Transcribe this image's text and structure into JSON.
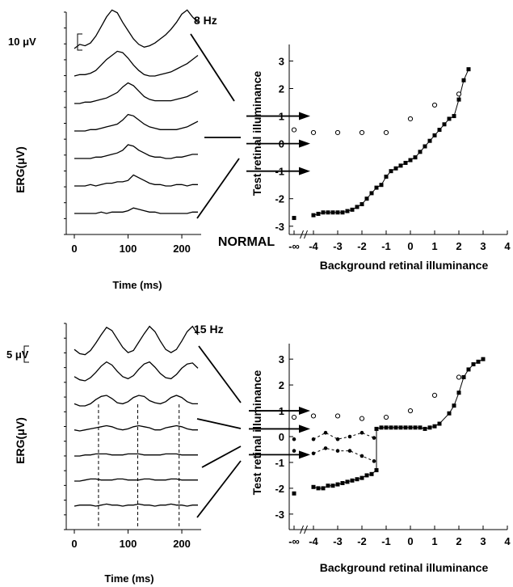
{
  "figure": {
    "condition_label": "NORMAL"
  },
  "chart_data": [
    {
      "type": "line",
      "panel": "top-left",
      "frequency_label": "8 Hz",
      "scale_label": "10 μV",
      "xlabel": "Time  (ms)",
      "ylabel": "ERG(μV)",
      "xlim": [
        0,
        230
      ],
      "x_ticks": [
        "0",
        "100",
        "200"
      ],
      "sample_x": [
        0,
        10,
        20,
        30,
        40,
        50,
        60,
        70,
        80,
        90,
        100,
        110,
        120,
        130,
        140,
        150,
        160,
        170,
        180,
        190,
        200,
        210,
        220,
        230
      ],
      "series": [
        {
          "amplitude": [
            0.0,
            0.3,
            0.2,
            0.4,
            0.9,
            1.6,
            2.3,
            2.8,
            2.6,
            1.9,
            1.3,
            0.7,
            0.3,
            0.1,
            0.2,
            0.4,
            0.7,
            1.0,
            1.4,
            1.9,
            2.5,
            2.8,
            2.3,
            1.9
          ]
        },
        {
          "amplitude": [
            0.0,
            0.1,
            0.1,
            0.2,
            0.4,
            0.8,
            1.2,
            1.5,
            1.8,
            1.7,
            1.3,
            0.8,
            0.4,
            0.1,
            0.0,
            0.0,
            0.1,
            0.2,
            0.3,
            0.5,
            0.7,
            0.9,
            1.2,
            1.5
          ]
        },
        {
          "amplitude": [
            0.0,
            0.0,
            0.1,
            0.1,
            0.2,
            0.3,
            0.4,
            0.6,
            0.8,
            1.2,
            1.5,
            1.3,
            0.9,
            0.5,
            0.3,
            0.2,
            0.2,
            0.2,
            0.2,
            0.3,
            0.4,
            0.5,
            0.7,
            0.9
          ]
        },
        {
          "amplitude": [
            0.0,
            0.0,
            0.0,
            0.1,
            0.1,
            0.2,
            0.3,
            0.4,
            0.5,
            0.8,
            1.2,
            1.1,
            0.8,
            0.5,
            0.3,
            0.2,
            0.1,
            0.1,
            0.1,
            0.1,
            0.2,
            0.3,
            0.5,
            0.7
          ]
        },
        {
          "amplitude": [
            0.0,
            0.0,
            0.0,
            0.0,
            0.1,
            0.1,
            0.2,
            0.3,
            0.4,
            0.6,
            1.0,
            0.9,
            0.6,
            0.4,
            0.2,
            0.1,
            0.1,
            0.0,
            0.0,
            0.1,
            0.1,
            0.2,
            0.3,
            0.3
          ]
        },
        {
          "amplitude": [
            0.0,
            0.0,
            0.0,
            0.1,
            0.0,
            0.1,
            0.2,
            0.2,
            0.3,
            0.3,
            0.4,
            0.8,
            0.6,
            0.4,
            0.2,
            0.1,
            0.1,
            0.0,
            0.0,
            0.1,
            0.1,
            0.0,
            0.1,
            0.1
          ]
        },
        {
          "amplitude": [
            0.0,
            0.0,
            0.0,
            0.0,
            0.0,
            0.1,
            0.0,
            0.1,
            0.1,
            0.1,
            0.2,
            0.4,
            0.3,
            0.2,
            0.1,
            0.1,
            0.0,
            0.0,
            0.0,
            0.0,
            0.0,
            0.0,
            0.1,
            0.1
          ]
        }
      ],
      "dashed_markers_ms": []
    },
    {
      "type": "scatter",
      "panel": "top-right",
      "xlabel": "Background retinal illuminance",
      "ylabel": "Test retinal illuminance",
      "xlim": [
        -5,
        4
      ],
      "ylim": [
        -3.3,
        3.6
      ],
      "x_ticks": [
        "-∞",
        "-4",
        "-3",
        "-2",
        "-1",
        "0",
        "1",
        "2",
        "3",
        "4"
      ],
      "y_ticks": [
        "-3",
        "-2",
        "-1",
        "0",
        "1",
        "2",
        "3"
      ],
      "series": [
        {
          "marker": "filled-square",
          "connected": "solid",
          "x": [
            -4,
            -3.8,
            -3.6,
            -3.4,
            -3.2,
            -3,
            -2.8,
            -2.6,
            -2.4,
            -2.2,
            -2,
            -1.8,
            -1.6,
            -1.4,
            -1.2,
            -1,
            -0.8,
            -0.6,
            -0.4,
            -0.2,
            0,
            0.2,
            0.4,
            0.6,
            0.8,
            1,
            1.2,
            1.4,
            1.6,
            1.8,
            2,
            2.2,
            2.4
          ],
          "y": [
            -2.6,
            -2.55,
            -2.5,
            -2.5,
            -2.5,
            -2.5,
            -2.5,
            -2.45,
            -2.4,
            -2.3,
            -2.2,
            -2.0,
            -1.8,
            -1.6,
            -1.5,
            -1.2,
            -1.0,
            -0.9,
            -0.8,
            -0.7,
            -0.6,
            -0.5,
            -0.3,
            -0.1,
            0.1,
            0.3,
            0.5,
            0.7,
            0.9,
            1.0,
            1.6,
            2.3,
            2.7
          ]
        },
        {
          "marker": "filled-square",
          "connected": "none",
          "x": [
            -4.8
          ],
          "y": [
            -2.7
          ]
        },
        {
          "marker": "open-circle",
          "connected": "none",
          "x": [
            -4.8,
            -4,
            -3,
            -2,
            -1,
            0,
            1,
            2
          ],
          "y": [
            0.5,
            0.4,
            0.4,
            0.4,
            0.4,
            0.9,
            1.4,
            1.8
          ]
        }
      ],
      "arrows_y": [
        1,
        0,
        -1
      ]
    },
    {
      "type": "line",
      "panel": "bottom-left",
      "frequency_label": "15 Hz",
      "scale_label": "5 μV",
      "xlabel": "Time  (ms)",
      "ylabel": "ERG(μV)",
      "xlim": [
        0,
        230
      ],
      "x_ticks": [
        "0",
        "100",
        "200"
      ],
      "sample_x": [
        0,
        10,
        20,
        30,
        40,
        50,
        60,
        70,
        80,
        90,
        100,
        110,
        120,
        130,
        140,
        150,
        160,
        170,
        180,
        190,
        200,
        210,
        220,
        230
      ],
      "series": [
        {
          "amplitude": [
            0.6,
            0.2,
            0.1,
            0.5,
            1.2,
            2.0,
            2.7,
            2.4,
            1.6,
            0.8,
            0.3,
            0.5,
            1.3,
            2.1,
            2.8,
            2.3,
            1.4,
            0.6,
            0.3,
            0.6,
            1.4,
            2.3,
            2.8,
            2.0
          ]
        },
        {
          "amplitude": [
            0.4,
            0.1,
            0.0,
            0.3,
            0.8,
            1.4,
            1.8,
            1.5,
            0.9,
            0.4,
            0.2,
            0.5,
            1.1,
            1.6,
            1.8,
            1.3,
            0.7,
            0.3,
            0.2,
            0.6,
            1.2,
            1.6,
            1.7,
            1.2
          ]
        },
        {
          "amplitude": [
            0.2,
            0.0,
            0.0,
            0.2,
            0.6,
            0.9,
            1.0,
            0.7,
            0.3,
            0.2,
            0.4,
            0.8,
            1.0,
            0.9,
            0.5,
            0.3,
            0.2,
            0.4,
            0.8,
            1.0,
            0.8,
            0.4,
            0.2,
            0.2
          ]
        },
        {
          "amplitude": [
            0.1,
            0.0,
            0.1,
            0.2,
            0.3,
            0.4,
            0.5,
            0.4,
            0.2,
            0.1,
            0.2,
            0.4,
            0.5,
            0.4,
            0.3,
            0.1,
            0.1,
            0.3,
            0.4,
            0.5,
            0.4,
            0.2,
            0.1,
            0.1
          ]
        },
        {
          "amplitude": [
            0.0,
            0.0,
            0.1,
            0.1,
            0.2,
            0.2,
            0.2,
            0.1,
            0.1,
            0.1,
            0.2,
            0.2,
            0.2,
            0.1,
            0.1,
            0.1,
            0.1,
            0.2,
            0.2,
            0.2,
            0.1,
            0.1,
            0.1,
            0.1
          ]
        },
        {
          "amplitude": [
            0.0,
            0.0,
            0.1,
            0.2,
            0.2,
            0.1,
            0.1,
            0.1,
            0.2,
            0.2,
            0.1,
            0.1,
            0.1,
            0.2,
            0.2,
            0.1,
            0.1,
            0.1,
            0.2,
            0.2,
            0.1,
            0.1,
            0.1,
            0.1
          ]
        },
        {
          "amplitude": [
            0.0,
            0.1,
            0.1,
            0.1,
            0.0,
            0.1,
            0.2,
            0.1,
            0.1,
            0.0,
            0.1,
            0.1,
            0.2,
            0.1,
            0.1,
            0.0,
            0.1,
            0.1,
            0.2,
            0.1,
            0.1,
            0.0,
            0.1,
            0.1
          ]
        }
      ],
      "dashed_markers_ms": [
        45,
        118,
        195
      ]
    },
    {
      "type": "scatter",
      "panel": "bottom-right",
      "xlabel": "Background retinal illuminance",
      "ylabel": "Test retinal illuminance",
      "xlim": [
        -5,
        4
      ],
      "ylim": [
        -3.6,
        3.6
      ],
      "x_ticks": [
        "-∞",
        "-4",
        "-3",
        "-2",
        "-1",
        "0",
        "1",
        "2",
        "3",
        "4"
      ],
      "y_ticks": [
        "-3",
        "-2",
        "-1",
        "0",
        "1",
        "2",
        "3"
      ],
      "series": [
        {
          "marker": "filled-square",
          "connected": "solid",
          "x": [
            -4,
            -3.8,
            -3.6,
            -3.4,
            -3.2,
            -3,
            -2.8,
            -2.6,
            -2.4,
            -2.2,
            -2,
            -1.8,
            -1.6,
            -1.4,
            -1.4,
            -1.2,
            -1,
            -0.8,
            -0.6,
            -0.4,
            -0.2,
            0,
            0.2,
            0.4,
            0.6,
            0.8,
            1,
            1.2,
            1.6,
            1.8,
            2,
            2.2,
            2.4,
            2.6,
            2.8,
            3
          ],
          "y": [
            -1.95,
            -2.0,
            -2.0,
            -1.9,
            -1.9,
            -1.85,
            -1.8,
            -1.75,
            -1.7,
            -1.65,
            -1.6,
            -1.5,
            -1.45,
            -1.3,
            0.3,
            0.35,
            0.35,
            0.35,
            0.35,
            0.35,
            0.35,
            0.35,
            0.35,
            0.35,
            0.3,
            0.35,
            0.4,
            0.5,
            0.9,
            1.2,
            1.7,
            2.3,
            2.6,
            2.8,
            2.9,
            3.0
          ]
        },
        {
          "marker": "filled-circle",
          "connected": "dashed",
          "x": [
            -4,
            -3.5,
            -3,
            -2.5,
            -2,
            -1.5
          ],
          "y": [
            -0.1,
            0.15,
            -0.1,
            0.0,
            0.15,
            -0.05
          ]
        },
        {
          "marker": "filled-circle",
          "connected": "dashed",
          "x": [
            -4,
            -3.5,
            -3,
            -2.5,
            -2,
            -1.5
          ],
          "y": [
            -0.65,
            -0.45,
            -0.55,
            -0.55,
            -0.75,
            -0.95
          ]
        },
        {
          "marker": "filled-square",
          "connected": "none",
          "x": [
            -4.8
          ],
          "y": [
            -2.2
          ]
        },
        {
          "marker": "filled-circle",
          "connected": "none",
          "x": [
            -4.8,
            -4.8
          ],
          "y": [
            -0.1,
            -0.55
          ]
        },
        {
          "marker": "open-circle",
          "connected": "none",
          "x": [
            -4.8,
            -4,
            -3,
            -2,
            -1,
            0,
            1,
            2
          ],
          "y": [
            0.75,
            0.8,
            0.8,
            0.7,
            0.75,
            1.0,
            1.6,
            2.3
          ]
        }
      ],
      "arrows_y": [
        1,
        0.3,
        -0.7
      ]
    }
  ]
}
